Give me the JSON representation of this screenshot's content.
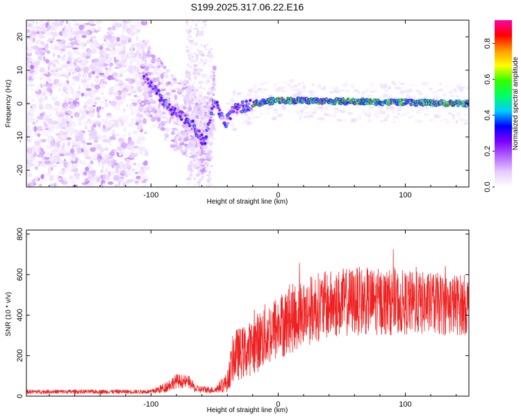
{
  "title": "S199.2025.317.06.22.E16",
  "chart_data": [
    {
      "type": "heatmap",
      "xlabel": "Height of straight line (km)",
      "ylabel": "Frequency (Hz)",
      "xlim": [
        -198,
        150
      ],
      "ylim": [
        -25,
        25
      ],
      "xticks": [
        -100,
        0,
        100
      ],
      "yticks": [
        -20,
        -10,
        0,
        10,
        20
      ],
      "colorbar": {
        "label": "Normalized spectral amplitude",
        "range": [
          0,
          0.93
        ],
        "ticks": [
          0.0,
          0.2,
          0.4,
          0.6,
          0.8
        ],
        "tick_labels": [
          "0.0",
          "0.2",
          "0.4",
          "0.6",
          "0.8"
        ],
        "colors": [
          "#ffffff",
          "#e6ccff",
          "#b366ff",
          "#7f00ff",
          "#0000ff",
          "#00ccff",
          "#00ff66",
          "#33ff00",
          "#ffff00",
          "#ff9900",
          "#ff0000",
          "#ff00aa"
        ]
      },
      "ridge": {
        "description_points": [
          {
            "x": -105,
            "f": 8
          },
          {
            "x": -95,
            "f": 3
          },
          {
            "x": -85,
            "f": -2
          },
          {
            "x": -70,
            "f": -5
          },
          {
            "x": -58,
            "f": -12
          },
          {
            "x": -50,
            "f": 1
          },
          {
            "x": -42,
            "f": -6
          },
          {
            "x": -35,
            "f": -2
          },
          {
            "x": -20,
            "f": 0
          },
          {
            "x": 0,
            "f": 1
          },
          {
            "x": 150,
            "f": 0
          }
        ]
      }
    },
    {
      "type": "line",
      "xlabel": "Height of straight line (km)",
      "ylabel": "SNR (10 * v/v)",
      "xlim": [
        -198,
        150
      ],
      "ylim": [
        0,
        820
      ],
      "xticks": [
        -100,
        0,
        100
      ],
      "yticks": [
        0,
        200,
        400,
        600,
        800
      ],
      "color": "#ee2222",
      "envelope": [
        {
          "x": -198,
          "mean": 22,
          "amp": 10
        },
        {
          "x": -100,
          "mean": 22,
          "amp": 10
        },
        {
          "x": -90,
          "mean": 40,
          "amp": 25
        },
        {
          "x": -80,
          "mean": 75,
          "amp": 35
        },
        {
          "x": -70,
          "mean": 70,
          "amp": 30
        },
        {
          "x": -65,
          "mean": 35,
          "amp": 20
        },
        {
          "x": -50,
          "mean": 30,
          "amp": 15
        },
        {
          "x": -40,
          "mean": 70,
          "amp": 50
        },
        {
          "x": -35,
          "mean": 200,
          "amp": 130
        },
        {
          "x": -25,
          "mean": 220,
          "amp": 130
        },
        {
          "x": -10,
          "mean": 300,
          "amp": 160
        },
        {
          "x": 10,
          "mean": 380,
          "amp": 170
        },
        {
          "x": 30,
          "mean": 440,
          "amp": 170
        },
        {
          "x": 60,
          "mean": 470,
          "amp": 170
        },
        {
          "x": 100,
          "mean": 460,
          "amp": 160
        },
        {
          "x": 150,
          "mean": 450,
          "amp": 150
        }
      ]
    }
  ]
}
